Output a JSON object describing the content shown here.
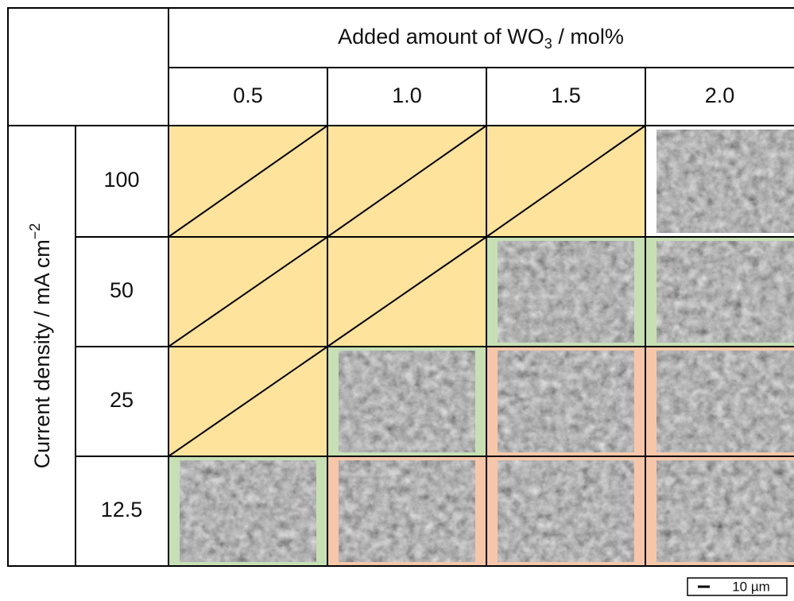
{
  "header": {
    "title": {
      "text": "Added amount of WO",
      "sub": "3",
      "after": " / mol%"
    },
    "columns": [
      "0.5",
      "1.0",
      "1.5",
      "2.0"
    ]
  },
  "side": {
    "title": {
      "text": "Current density / mA cm",
      "sup": "−2"
    },
    "rows": [
      "100",
      "50",
      "25",
      "12.5"
    ]
  },
  "scale_bar": "10 µm"
}
